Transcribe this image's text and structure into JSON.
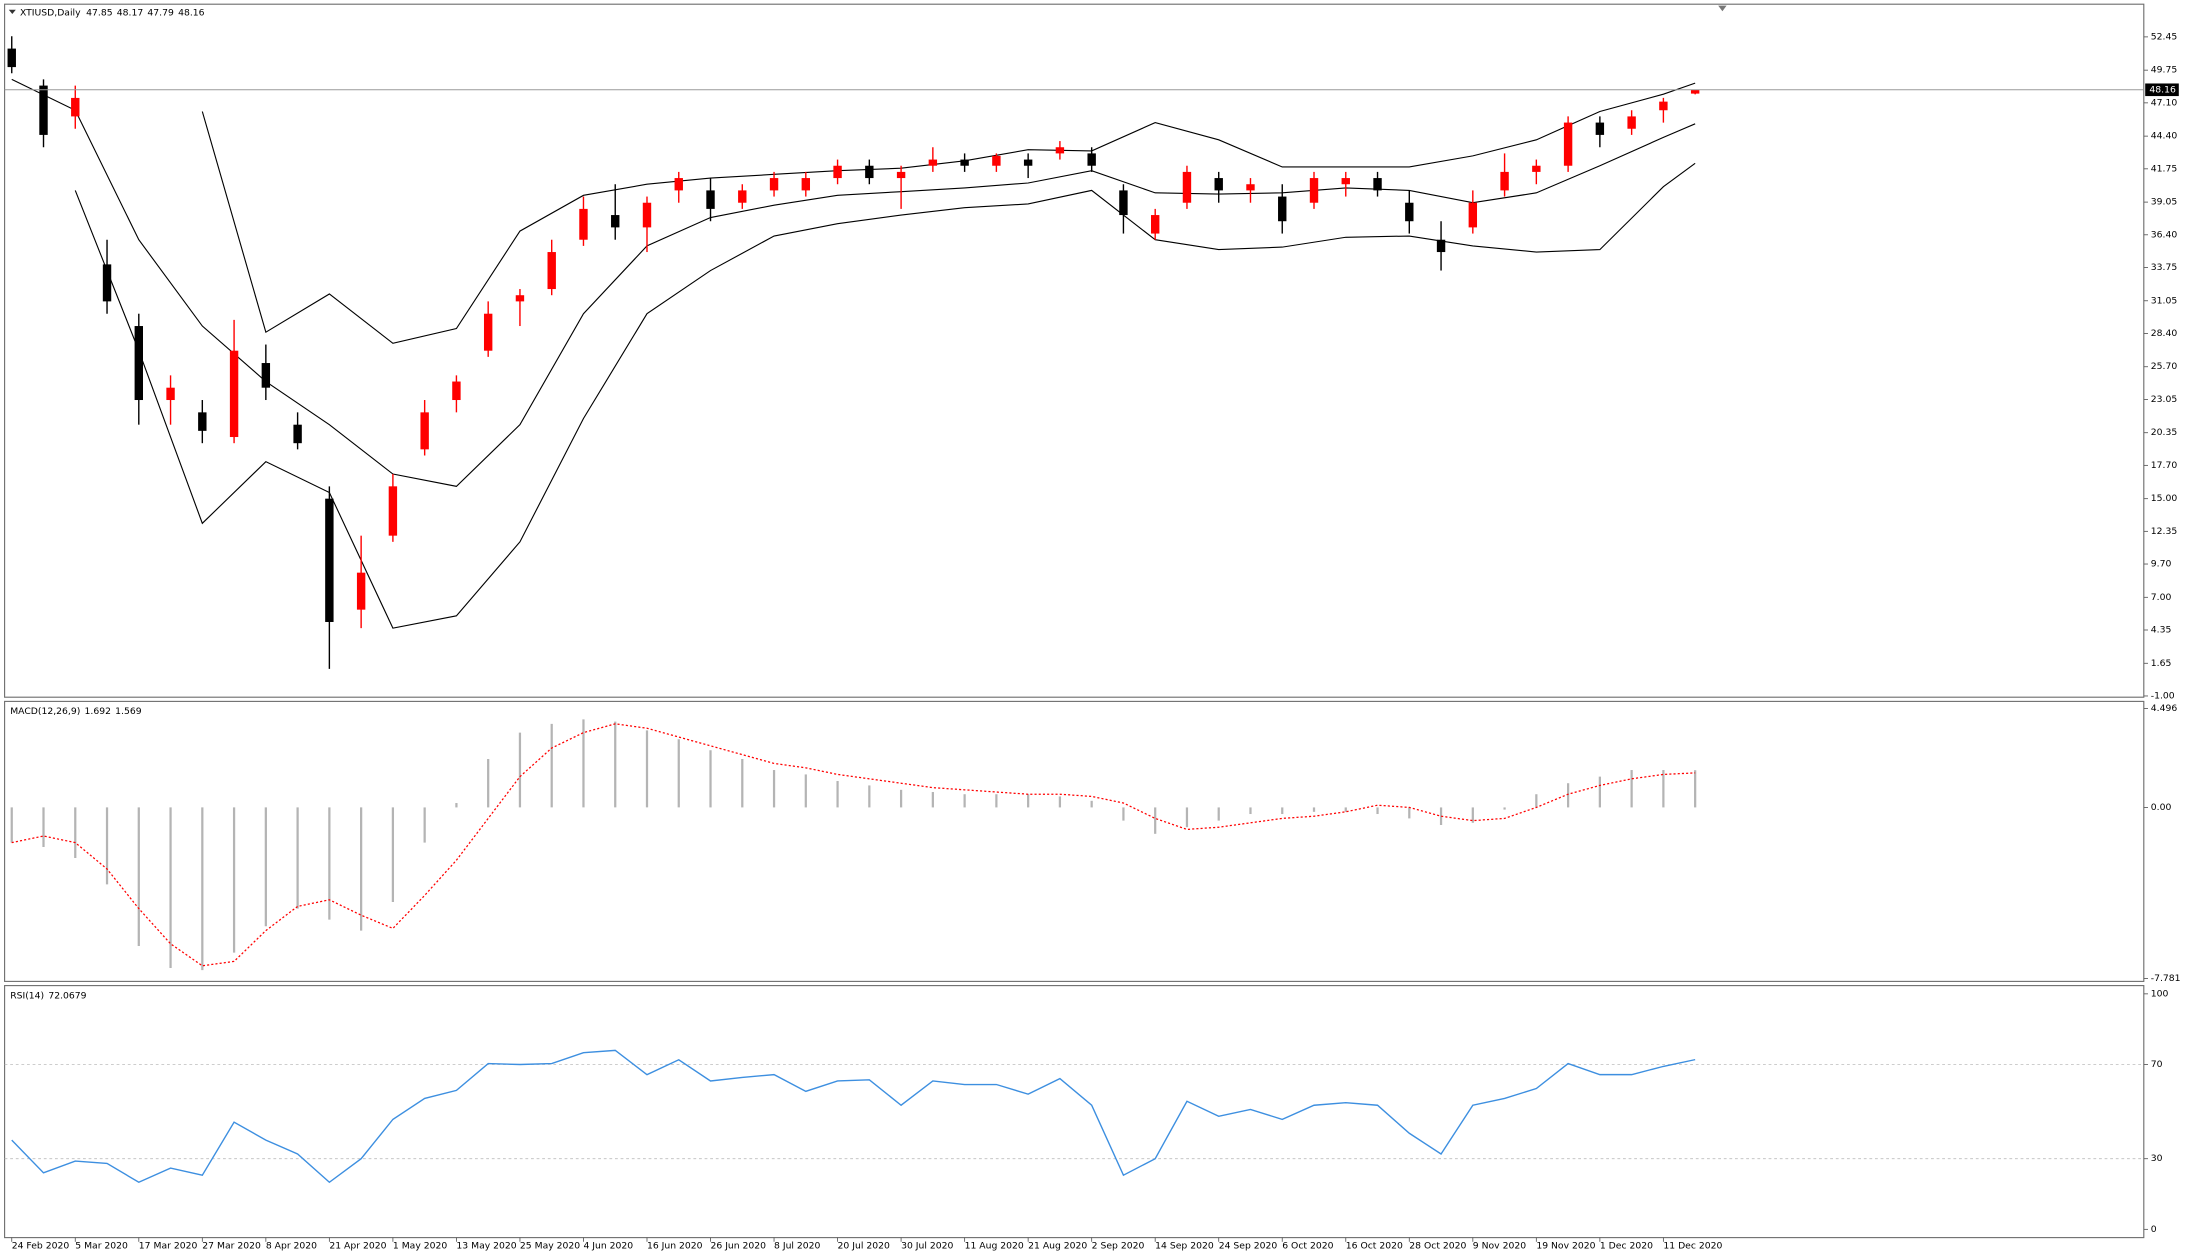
{
  "chart_data": [
    {
      "type": "candlestick",
      "title": "XTIUSD,Daily",
      "x": [
        0,
        4,
        8,
        12,
        16,
        20,
        24,
        28,
        32,
        36,
        40,
        44,
        48,
        52,
        56,
        60,
        64,
        68,
        72,
        76,
        80,
        84,
        88,
        92,
        96,
        100,
        104,
        108,
        112,
        116,
        120,
        124,
        128,
        132,
        136,
        140,
        144,
        148,
        152,
        156,
        160,
        164,
        168,
        172,
        176,
        180,
        184,
        188,
        192,
        196,
        200,
        204,
        208,
        212
      ],
      "open": [
        51.5,
        48.5,
        46,
        34,
        29,
        23,
        22,
        20,
        26,
        21,
        15,
        6,
        12,
        19,
        23,
        27,
        31,
        32,
        36,
        38,
        37,
        40,
        40,
        39,
        40,
        40,
        41,
        42,
        41,
        42,
        42.5,
        42,
        42.5,
        43,
        43,
        40,
        36.5,
        39,
        41,
        40,
        39.5,
        39,
        40.5,
        41,
        39,
        36,
        37,
        40,
        41.5,
        42,
        45.5,
        45,
        46.5,
        47.85
      ],
      "high": [
        52.5,
        49,
        48.5,
        36,
        30,
        25,
        23,
        29.5,
        27.5,
        22,
        16,
        12,
        17,
        23,
        25,
        31,
        32,
        36,
        39.5,
        40.5,
        39.5,
        41.5,
        41,
        40.5,
        41.5,
        41.5,
        42.5,
        42.5,
        42,
        43.5,
        43,
        43,
        43,
        44,
        43.5,
        40.5,
        38.5,
        42,
        41.5,
        41,
        40.5,
        41.5,
        41.5,
        41.5,
        40,
        37.5,
        40,
        43,
        42.5,
        46,
        46,
        46.5,
        47.5,
        48.17
      ],
      "low": [
        49.5,
        43.5,
        45,
        30,
        21,
        21,
        19.5,
        19.5,
        23,
        19,
        1.2,
        4.5,
        11.5,
        18.5,
        22,
        26.5,
        29,
        31.5,
        35.5,
        36,
        35,
        39,
        37.5,
        38.5,
        39.5,
        39.5,
        40.5,
        40.5,
        38.5,
        41.5,
        41.5,
        41.5,
        41,
        42.5,
        41.5,
        36.5,
        36,
        38.5,
        39,
        39,
        36.5,
        38.5,
        39.5,
        39.5,
        36.5,
        33.5,
        36.5,
        39.5,
        40.5,
        41.5,
        43.5,
        44.5,
        45.5,
        47.79
      ],
      "close": [
        50,
        44.5,
        47.5,
        31,
        23,
        24,
        20.5,
        27,
        24,
        19.5,
        5,
        9,
        16,
        22,
        24.5,
        30,
        31.5,
        35,
        38.5,
        37,
        39,
        41,
        38.5,
        40,
        41,
        41,
        42,
        41,
        41.5,
        42.5,
        42,
        42.8,
        42,
        43.5,
        42,
        38,
        38,
        41.5,
        40,
        40.5,
        37.5,
        41,
        41,
        40,
        37.5,
        35,
        39,
        41.5,
        42,
        45.5,
        44.5,
        46,
        47.2,
        48.16
      ],
      "up_color": "#ff0000",
      "down_color": "#000000",
      "last_line_color": "#9a9a9a",
      "series": [
        {
          "color": "#000000",
          "x": [
            0,
            8,
            16,
            24,
            32,
            40,
            48,
            56,
            64,
            72,
            80,
            88,
            96,
            104,
            112,
            120,
            128,
            136,
            144,
            152,
            160,
            168,
            176,
            184,
            192,
            200,
            208,
            212
          ],
          "values": [
            null,
            null,
            null,
            46.4,
            28.5,
            31.6,
            27.6,
            28.8,
            36.7,
            39.6,
            40.5,
            41.0,
            41.3,
            41.6,
            41.8,
            42.4,
            43.3,
            43.2,
            45.5,
            44.1,
            41.9,
            41.9,
            41.9,
            42.8,
            44.1,
            46.4,
            47.8,
            48.7
          ]
        },
        {
          "color": "#000000",
          "x": [
            0,
            8,
            16,
            24,
            32,
            40,
            48,
            56,
            64,
            72,
            80,
            88,
            96,
            104,
            112,
            120,
            128,
            136,
            144,
            152,
            160,
            168,
            176,
            184,
            192,
            200,
            208,
            212
          ],
          "values": [
            49.0,
            46.5,
            36.0,
            29.0,
            24.5,
            21.0,
            17.0,
            16.0,
            21.0,
            30.0,
            35.5,
            37.8,
            38.8,
            39.6,
            39.9,
            40.2,
            40.6,
            41.6,
            39.8,
            39.7,
            39.8,
            40.2,
            40.0,
            39.0,
            39.8,
            42.0,
            44.3,
            45.4
          ]
        },
        {
          "color": "#000000",
          "x": [
            0,
            8,
            16,
            24,
            32,
            40,
            48,
            56,
            64,
            72,
            80,
            88,
            96,
            104,
            112,
            120,
            128,
            136,
            144,
            152,
            160,
            168,
            176,
            184,
            192,
            200,
            208,
            212
          ],
          "values": [
            null,
            40.0,
            27.0,
            13.0,
            18.0,
            15.5,
            4.5,
            5.5,
            11.5,
            21.5,
            30.0,
            33.5,
            36.3,
            37.3,
            38.0,
            38.6,
            38.9,
            40.0,
            36.0,
            35.2,
            35.4,
            36.2,
            36.3,
            35.5,
            35.0,
            35.2,
            40.3,
            42.2
          ]
        }
      ],
      "xlim": [
        -0.9,
        268.5
      ],
      "ylim": [
        -1.1,
        55.1
      ],
      "yticks": [
        52.45,
        49.75,
        {
          "value": 47.1,
          "label": "47.10"
        },
        {
          "value": 44.4,
          "label": "44.40"
        },
        41.75,
        39.05,
        {
          "value": 36.4,
          "label": "36.40"
        },
        33.75,
        31.05,
        {
          "value": 28.4,
          "label": "28.40"
        },
        {
          "value": 25.7,
          "label": "25.70"
        },
        23.05,
        20.35,
        {
          "value": 17.7,
          "label": "17.70"
        },
        {
          "value": 15,
          "label": "15.00"
        },
        12.35,
        {
          "value": 9.7,
          "label": "9.70"
        },
        {
          "value": 7,
          "label": "7.00"
        },
        4.35,
        1.65,
        {
          "value": -1,
          "label": "-1.00"
        }
      ]
    },
    {
      "type": "macd",
      "title": "MACD(12,26,9)",
      "x": [
        0,
        4,
        8,
        12,
        16,
        20,
        24,
        28,
        32,
        36,
        40,
        44,
        48,
        52,
        56,
        60,
        64,
        68,
        72,
        76,
        80,
        84,
        88,
        92,
        96,
        100,
        104,
        108,
        112,
        116,
        120,
        124,
        128,
        132,
        136,
        140,
        144,
        148,
        152,
        156,
        160,
        164,
        168,
        172,
        176,
        180,
        184,
        188,
        192,
        196,
        200,
        204,
        208,
        212
      ],
      "series": [
        {
          "color": "#b4b4b4",
          "style": "histogram",
          "values": [
            -1.6,
            -1.8,
            -2.3,
            -3.5,
            -6.3,
            -7.3,
            -7.4,
            -6.6,
            -5.4,
            -4.6,
            -5.1,
            -5.6,
            -4.3,
            -1.6,
            0.2,
            2.2,
            3.4,
            3.8,
            4.0,
            3.9,
            3.5,
            3.1,
            2.6,
            2.2,
            1.7,
            1.5,
            1.2,
            1.0,
            0.8,
            0.7,
            0.6,
            0.6,
            0.6,
            0.5,
            0.3,
            -0.6,
            -1.2,
            -0.9,
            -0.6,
            -0.3,
            -0.3,
            -0.2,
            -0.2,
            -0.3,
            -0.5,
            -0.8,
            -0.7,
            -0.1,
            0.6,
            1.1,
            1.4,
            1.7,
            1.7,
            1.692
          ]
        },
        {
          "color": "#ff0000",
          "style": "dotted",
          "values": [
            -1.6,
            -1.3,
            -1.6,
            -2.8,
            -4.6,
            -6.2,
            -7.2,
            -7.0,
            -5.6,
            -4.5,
            -4.2,
            -4.9,
            -5.5,
            -4.0,
            -2.4,
            -0.5,
            1.4,
            2.7,
            3.4,
            3.8,
            3.6,
            3.2,
            2.8,
            2.4,
            2.0,
            1.8,
            1.5,
            1.3,
            1.1,
            0.9,
            0.8,
            0.7,
            0.6,
            0.6,
            0.5,
            0.2,
            -0.5,
            -1.0,
            -0.9,
            -0.7,
            -0.5,
            -0.4,
            -0.2,
            0.1,
            0.0,
            -0.4,
            -0.6,
            -0.5,
            0.0,
            0.6,
            1.0,
            1.3,
            1.5,
            1.569
          ]
        }
      ],
      "xlim": [
        -0.9,
        268.5
      ],
      "ylim": [
        -7.91,
        4.82
      ],
      "yticks": [
        4.496,
        {
          "value": 0,
          "label": "0.00"
        },
        -7.781
      ]
    },
    {
      "type": "line",
      "title": "RSI(14)",
      "x": [
        0,
        4,
        8,
        12,
        16,
        20,
        24,
        28,
        32,
        36,
        40,
        44,
        48,
        52,
        56,
        60,
        64,
        68,
        72,
        76,
        80,
        84,
        88,
        92,
        96,
        100,
        104,
        108,
        112,
        116,
        120,
        124,
        128,
        132,
        136,
        140,
        144,
        148,
        152,
        156,
        160,
        164,
        168,
        172,
        176,
        180,
        184,
        188,
        192,
        196,
        200,
        204,
        208,
        212
      ],
      "series": [
        {
          "color": "#3d8fe0",
          "values": [
            37.9,
            24,
            29,
            28,
            20,
            26,
            23,
            45.5,
            37.9,
            32,
            20,
            30,
            46.7,
            55.6,
            59,
            70.4,
            70,
            70.4,
            75,
            76,
            65.7,
            72,
            63,
            64.5,
            65.7,
            58.6,
            63,
            63.5,
            52.7,
            63,
            61.5,
            61.5,
            57.4,
            64,
            52.7,
            23,
            30,
            54.4,
            48,
            50.9,
            46.7,
            52.7,
            53.8,
            52.7,
            40.8,
            32,
            52.7,
            55.6,
            59.8,
            70.4,
            65.7,
            65.7,
            69.2,
            72.0679
          ]
        }
      ],
      "levels": [
        30,
        70
      ],
      "xlim": [
        -0.9,
        268.5
      ],
      "ylim": [
        -3.5,
        103.5
      ],
      "yticks": [
        0,
        30,
        70,
        100
      ],
      "xticks": [
        {
          "value": 0,
          "label": "24 Feb 2020"
        },
        {
          "value": 8,
          "label": "5 Mar 2020"
        },
        {
          "value": 16,
          "label": "17 Mar 2020"
        },
        {
          "value": 24,
          "label": "27 Mar 2020"
        },
        {
          "value": 32,
          "label": "8 Apr 2020"
        },
        {
          "value": 40,
          "label": "21 Apr 2020"
        },
        {
          "value": 48,
          "label": "1 May 2020"
        },
        {
          "value": 56,
          "label": "13 May 2020"
        },
        {
          "value": 64,
          "label": "25 May 2020"
        },
        {
          "value": 72,
          "label": "4 Jun 2020"
        },
        {
          "value": 80,
          "label": "16 Jun 2020"
        },
        {
          "value": 88,
          "label": "26 Jun 2020"
        },
        {
          "value": 96,
          "label": "8 Jul 2020"
        },
        {
          "value": 104,
          "label": "20 Jul 2020"
        },
        {
          "value": 112,
          "label": "30 Jul 2020"
        },
        {
          "value": 120,
          "label": "11 Aug 2020"
        },
        {
          "value": 128,
          "label": "21 Aug 2020"
        },
        {
          "value": 136,
          "label": "2 Sep 2020"
        },
        {
          "value": 144,
          "label": "14 Sep 2020"
        },
        {
          "value": 152,
          "label": "24 Sep 2020"
        },
        {
          "value": 160,
          "label": "6 Oct 2020"
        },
        {
          "value": 168,
          "label": "16 Oct 2020"
        },
        {
          "value": 176,
          "label": "28 Oct 2020"
        },
        {
          "value": 184,
          "label": "9 Nov 2020"
        },
        {
          "value": 192,
          "label": "19 Nov 2020"
        },
        {
          "value": 200,
          "label": "1 Dec 2020"
        },
        {
          "value": 208,
          "label": "11 Dec 2020"
        }
      ]
    }
  ]
}
